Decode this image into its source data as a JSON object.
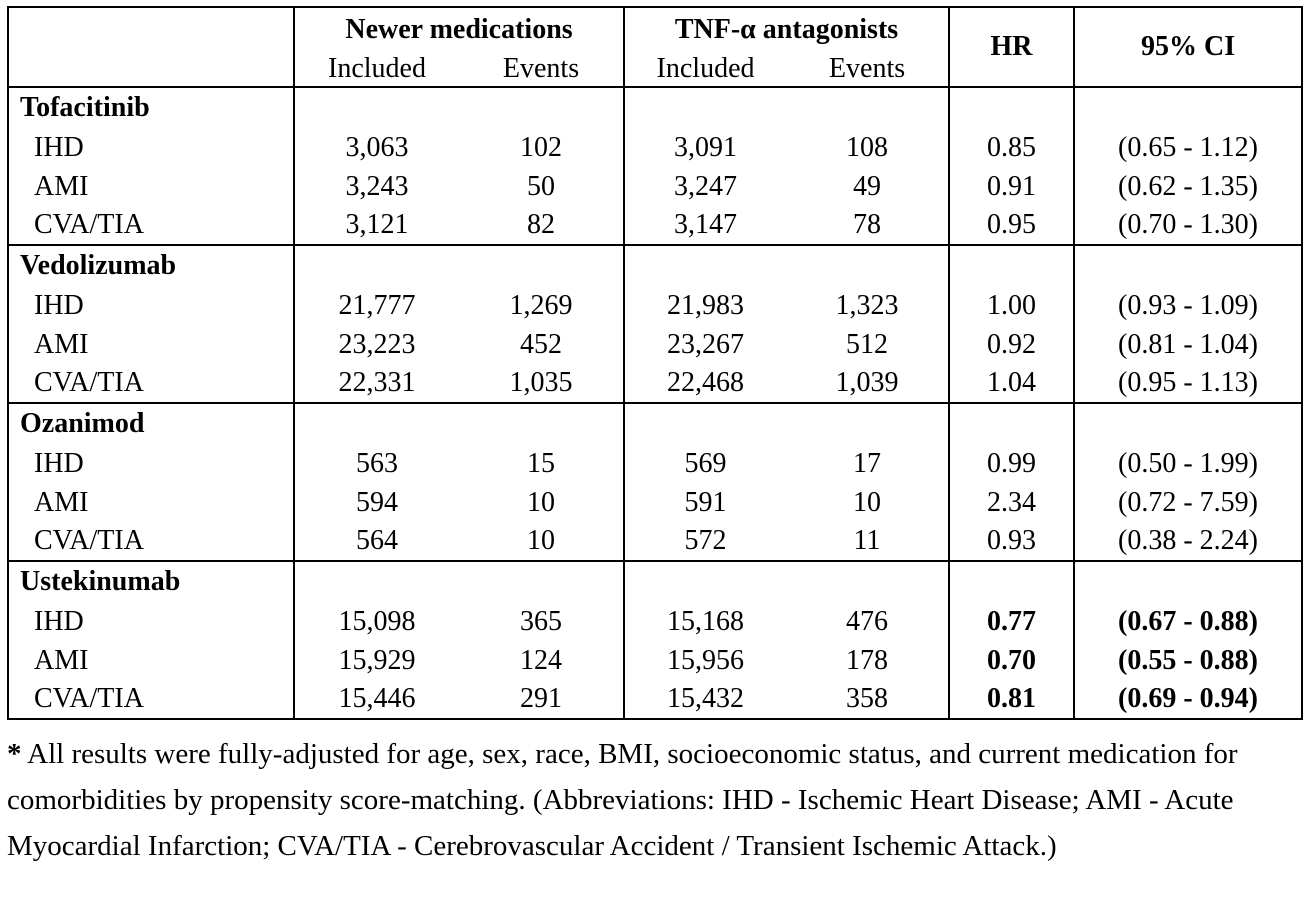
{
  "table": {
    "header": {
      "groups": [
        {
          "label": "Newer medications",
          "subcols": [
            "Included",
            "Events"
          ]
        },
        {
          "label": "TNF-α antagonists",
          "subcols": [
            "Included",
            "Events"
          ]
        }
      ],
      "hr": "HR",
      "ci": "95% CI"
    },
    "sections": [
      {
        "drug": "Tofacitinib",
        "hr_ci_bold": false,
        "rows": [
          {
            "outcome": "IHD",
            "newer_included": "3,063",
            "newer_events": "102",
            "tnf_included": "3,091",
            "tnf_events": "108",
            "hr": "0.85",
            "ci": "(0.65 - 1.12)"
          },
          {
            "outcome": "AMI",
            "newer_included": "3,243",
            "newer_events": "50",
            "tnf_included": "3,247",
            "tnf_events": "49",
            "hr": "0.91",
            "ci": "(0.62 - 1.35)"
          },
          {
            "outcome": "CVA/TIA",
            "newer_included": "3,121",
            "newer_events": "82",
            "tnf_included": "3,147",
            "tnf_events": "78",
            "hr": "0.95",
            "ci": "(0.70 - 1.30)"
          }
        ]
      },
      {
        "drug": "Vedolizumab",
        "hr_ci_bold": false,
        "rows": [
          {
            "outcome": "IHD",
            "newer_included": "21,777",
            "newer_events": "1,269",
            "tnf_included": "21,983",
            "tnf_events": "1,323",
            "hr": "1.00",
            "ci": "(0.93 - 1.09)"
          },
          {
            "outcome": "AMI",
            "newer_included": "23,223",
            "newer_events": "452",
            "tnf_included": "23,267",
            "tnf_events": "512",
            "hr": "0.92",
            "ci": "(0.81 - 1.04)"
          },
          {
            "outcome": "CVA/TIA",
            "newer_included": "22,331",
            "newer_events": "1,035",
            "tnf_included": "22,468",
            "tnf_events": "1,039",
            "hr": "1.04",
            "ci": "(0.95 - 1.13)"
          }
        ]
      },
      {
        "drug": "Ozanimod",
        "hr_ci_bold": false,
        "rows": [
          {
            "outcome": "IHD",
            "newer_included": "563",
            "newer_events": "15",
            "tnf_included": "569",
            "tnf_events": "17",
            "hr": "0.99",
            "ci": "(0.50 - 1.99)"
          },
          {
            "outcome": "AMI",
            "newer_included": "594",
            "newer_events": "10",
            "tnf_included": "591",
            "tnf_events": "10",
            "hr": "2.34",
            "ci": "(0.72 - 7.59)"
          },
          {
            "outcome": "CVA/TIA",
            "newer_included": "564",
            "newer_events": "10",
            "tnf_included": "572",
            "tnf_events": "11",
            "hr": "0.93",
            "ci": "(0.38 - 2.24)"
          }
        ]
      },
      {
        "drug": "Ustekinumab",
        "hr_ci_bold": true,
        "rows": [
          {
            "outcome": "IHD",
            "newer_included": "15,098",
            "newer_events": "365",
            "tnf_included": "15,168",
            "tnf_events": "476",
            "hr": "0.77",
            "ci": "(0.67 - 0.88)"
          },
          {
            "outcome": "AMI",
            "newer_included": "15,929",
            "newer_events": "124",
            "tnf_included": "15,956",
            "tnf_events": "178",
            "hr": "0.70",
            "ci": "(0.55 - 0.88)"
          },
          {
            "outcome": "CVA/TIA",
            "newer_included": "15,446",
            "newer_events": "291",
            "tnf_included": "15,432",
            "tnf_events": "358",
            "hr": "0.81",
            "ci": "(0.69 - 0.94)"
          }
        ]
      }
    ]
  },
  "footnote": {
    "marker": "*",
    "text": " All results were fully-adjusted for age, sex, race, BMI, socioeconomic status, and current medication for comorbidities by propensity score-matching. (Abbreviations: IHD - Ischemic Heart Disease; AMI - Acute Myocardial Infarction; CVA/TIA - Cerebrovascular Accident / Transient Ischemic Attack.)"
  }
}
